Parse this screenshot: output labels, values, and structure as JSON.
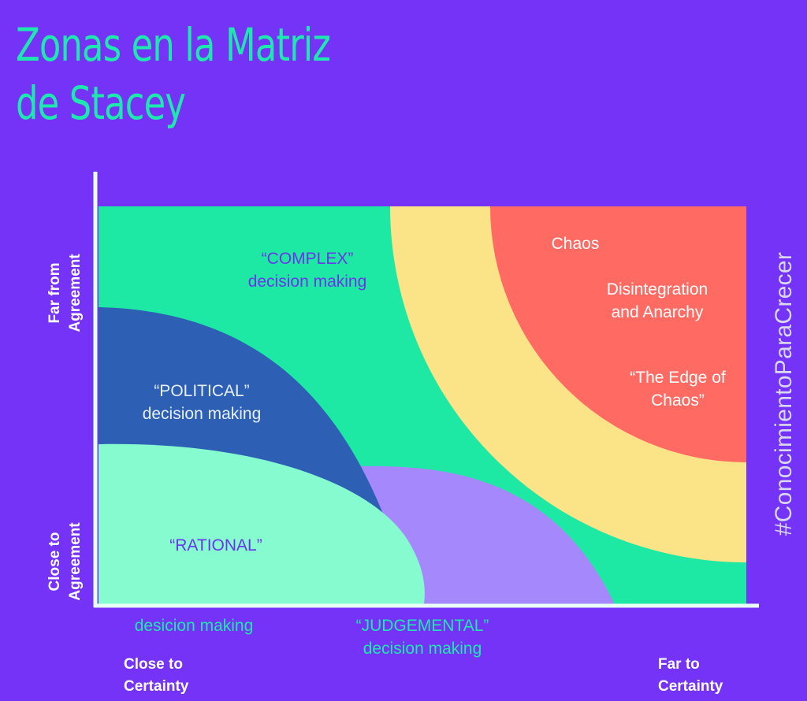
{
  "title": {
    "line1": "Zonas en la Matriz",
    "line2": "de Stacey"
  },
  "hashtag": "#ConocimientoParaCrecer",
  "y_axis": {
    "top": {
      "line1": "Far from",
      "line2": "Agreement"
    },
    "bottom": {
      "line1": "Close to",
      "line2": "Agreement"
    }
  },
  "x_axis": {
    "left": {
      "line1": "Close to",
      "line2": "Certainty"
    },
    "right": {
      "line1": "Far to",
      "line2": "Certainty"
    }
  },
  "zones": {
    "complex": {
      "line1": "“COMPLEX”",
      "line2": "decision making"
    },
    "political": {
      "line1": "“POLITICAL”",
      "line2": "decision making"
    },
    "rational": {
      "line1": "“RATIONAL”",
      "line2": "desicion making"
    },
    "judgemental": {
      "line1": "“JUDGEMENTAL”",
      "line2": "decision making"
    },
    "chaos": {
      "label": "Chaos"
    },
    "disintegration": {
      "line1": "Disintegration",
      "line2": "and Anarchy"
    },
    "edge": {
      "line1": "“The Edge of",
      "line2": "Chaos”"
    }
  },
  "colors": {
    "background": "#7433f6",
    "complex": "#1de9a5",
    "political": "#2d5fb5",
    "rational": "#86fbcf",
    "judgemental": "#a588fb",
    "edge_band": "#fbe387",
    "chaos": "#ff6b63",
    "axis": "#e8fff6",
    "title": "#1de9ae"
  }
}
